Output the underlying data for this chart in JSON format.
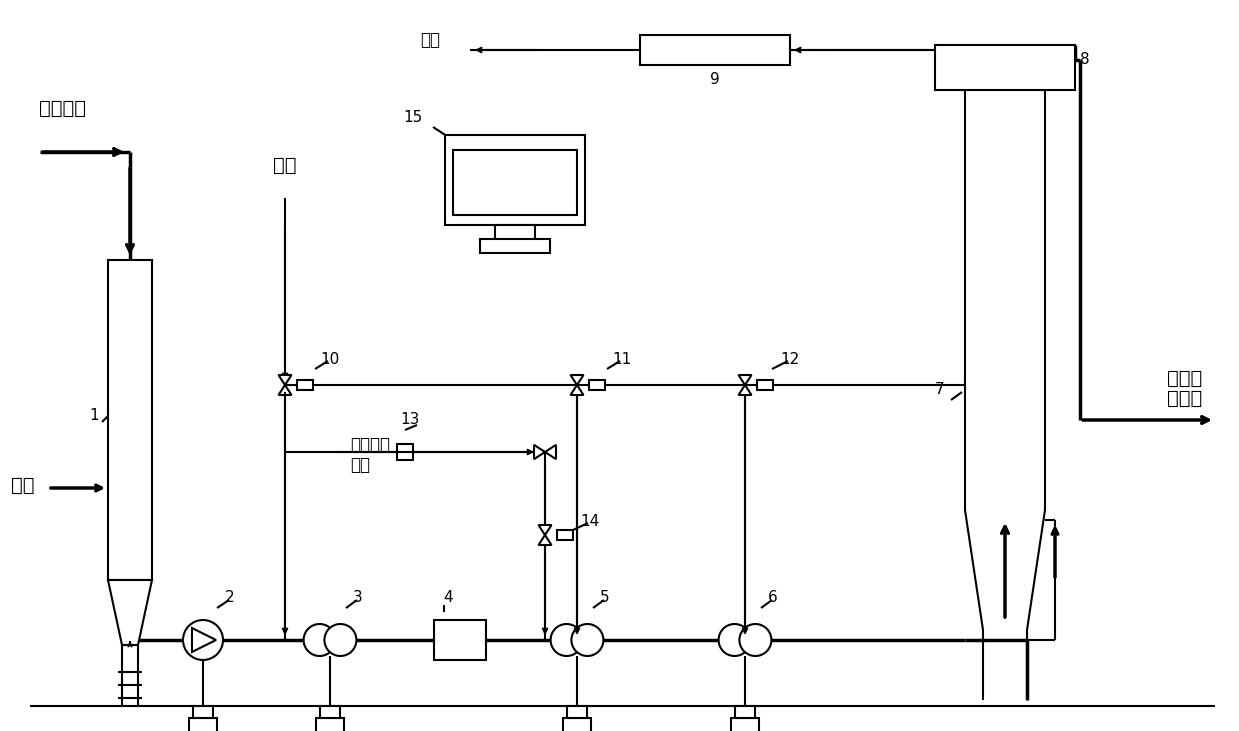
{
  "bg_color": "#ffffff",
  "lc": "#000000",
  "lw": 1.5,
  "blw": 2.5,
  "fw": 12.39,
  "fh": 7.31,
  "dpi": 100,
  "labels": {
    "pulp_in": "纸浆来浆",
    "acid": "酸液",
    "ozone": "臭氧",
    "tail_gas": "尾气",
    "clo2": "二氧化氯",
    "steam": "蒸汽",
    "pulp_out1": "纸浆去",
    "pulp_out2": "下一段",
    "n1": "1",
    "n2": "2",
    "n3": "3",
    "n4": "4",
    "n5": "5",
    "n6": "6",
    "n7": "7",
    "n8": "8",
    "n9": "9",
    "n10": "10",
    "n11": "11",
    "n12": "12",
    "n13": "13",
    "n14": "14",
    "n15": "15"
  },
  "font_size_large": 14,
  "font_size_med": 12,
  "font_size_small": 11
}
